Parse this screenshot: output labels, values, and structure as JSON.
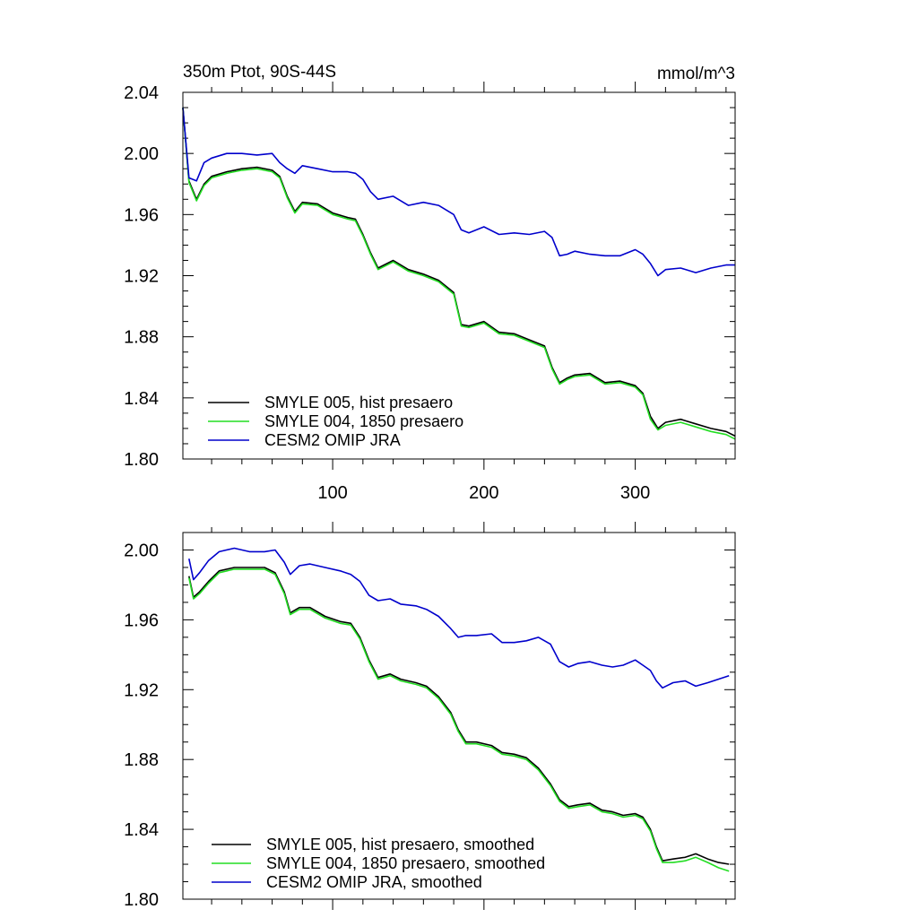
{
  "chart_data": [
    {
      "type": "line",
      "title": "350m Ptot, 90S-44S",
      "units": "mmol/m^3",
      "xlim": [
        1,
        366
      ],
      "ylim": [
        1.8,
        2.04
      ],
      "xticks": [
        100,
        200,
        300
      ],
      "xtick_labels": [
        "100",
        "200",
        "300"
      ],
      "yticks": [
        1.8,
        1.84,
        1.88,
        1.92,
        1.96,
        2.0,
        2.04
      ],
      "ytick_labels": [
        "1.80",
        "1.84",
        "1.88",
        "1.92",
        "1.96",
        "2.00",
        "2.04"
      ],
      "legend_position": "bottom-left",
      "series": [
        {
          "name": "SMYLE 005, hist presaero",
          "color": "#000000",
          "x": [
            1,
            5,
            10,
            15,
            20,
            30,
            40,
            50,
            60,
            65,
            70,
            75,
            80,
            90,
            100,
            110,
            115,
            120,
            125,
            130,
            140,
            150,
            160,
            170,
            180,
            185,
            190,
            200,
            210,
            220,
            230,
            240,
            245,
            250,
            255,
            260,
            270,
            280,
            290,
            300,
            305,
            310,
            315,
            320,
            330,
            340,
            350,
            360,
            366
          ],
          "values": [
            2.03,
            1.982,
            1.97,
            1.98,
            1.985,
            1.988,
            1.99,
            1.991,
            1.989,
            1.985,
            1.972,
            1.962,
            1.968,
            1.967,
            1.961,
            1.958,
            1.957,
            1.947,
            1.935,
            1.925,
            1.93,
            1.924,
            1.921,
            1.917,
            1.909,
            1.888,
            1.887,
            1.89,
            1.883,
            1.882,
            1.878,
            1.874,
            1.86,
            1.85,
            1.853,
            1.855,
            1.856,
            1.85,
            1.851,
            1.848,
            1.843,
            1.828,
            1.82,
            1.824,
            1.826,
            1.823,
            1.82,
            1.818,
            1.815
          ]
        },
        {
          "name": "SMYLE 004, 1850 presaero",
          "color": "#22dd22",
          "x": [
            1,
            5,
            10,
            15,
            20,
            30,
            40,
            50,
            60,
            65,
            70,
            75,
            80,
            90,
            100,
            110,
            115,
            120,
            125,
            130,
            140,
            150,
            160,
            170,
            180,
            185,
            190,
            200,
            210,
            220,
            230,
            240,
            245,
            250,
            255,
            260,
            270,
            280,
            290,
            300,
            305,
            310,
            315,
            320,
            330,
            340,
            350,
            360,
            366
          ],
          "values": [
            2.03,
            1.981,
            1.969,
            1.979,
            1.984,
            1.987,
            1.989,
            1.99,
            1.988,
            1.984,
            1.971,
            1.961,
            1.967,
            1.966,
            1.96,
            1.957,
            1.956,
            1.946,
            1.934,
            1.924,
            1.929,
            1.923,
            1.92,
            1.916,
            1.908,
            1.887,
            1.886,
            1.889,
            1.882,
            1.881,
            1.877,
            1.873,
            1.859,
            1.849,
            1.852,
            1.854,
            1.855,
            1.849,
            1.85,
            1.847,
            1.842,
            1.826,
            1.819,
            1.822,
            1.824,
            1.821,
            1.818,
            1.816,
            1.813
          ]
        },
        {
          "name": "CESM2 OMIP JRA",
          "color": "#0000cc",
          "x": [
            1,
            5,
            10,
            15,
            20,
            30,
            40,
            50,
            60,
            65,
            70,
            75,
            80,
            90,
            100,
            110,
            115,
            120,
            125,
            130,
            140,
            150,
            160,
            170,
            180,
            185,
            190,
            200,
            210,
            220,
            230,
            240,
            245,
            250,
            255,
            260,
            270,
            280,
            290,
            300,
            305,
            310,
            315,
            320,
            330,
            340,
            350,
            360,
            366
          ],
          "values": [
            2.03,
            1.984,
            1.982,
            1.994,
            1.997,
            2.0,
            2.0,
            1.999,
            2.0,
            1.994,
            1.99,
            1.987,
            1.992,
            1.99,
            1.988,
            1.988,
            1.987,
            1.983,
            1.975,
            1.97,
            1.972,
            1.966,
            1.968,
            1.966,
            1.96,
            1.95,
            1.948,
            1.952,
            1.947,
            1.948,
            1.947,
            1.949,
            1.945,
            1.933,
            1.934,
            1.936,
            1.934,
            1.933,
            1.933,
            1.937,
            1.934,
            1.928,
            1.92,
            1.924,
            1.925,
            1.922,
            1.925,
            1.927,
            1.927
          ]
        }
      ]
    },
    {
      "type": "line",
      "title": "",
      "xlim": [
        1,
        366
      ],
      "ylim": [
        1.8,
        2.01
      ],
      "xticks": [
        100,
        200,
        300
      ],
      "yticks": [
        1.8,
        1.84,
        1.88,
        1.92,
        1.96,
        2.0
      ],
      "ytick_labels": [
        "1.80",
        "1.84",
        "1.88",
        "1.92",
        "1.96",
        "2.00"
      ],
      "legend_position": "bottom-left",
      "series": [
        {
          "name": "SMYLE 005, hist presaero, smoothed",
          "color": "#000000",
          "x": [
            5,
            8,
            12,
            18,
            25,
            35,
            45,
            55,
            62,
            68,
            72,
            78,
            85,
            95,
            105,
            112,
            118,
            124,
            130,
            138,
            145,
            155,
            162,
            170,
            178,
            183,
            188,
            195,
            205,
            212,
            220,
            228,
            236,
            244,
            250,
            256,
            262,
            270,
            278,
            285,
            292,
            300,
            305,
            310,
            314,
            318,
            325,
            333,
            340,
            348,
            355,
            362
          ],
          "values": [
            1.985,
            1.973,
            1.976,
            1.982,
            1.988,
            1.99,
            1.99,
            1.99,
            1.987,
            1.976,
            1.964,
            1.967,
            1.967,
            1.962,
            1.959,
            1.958,
            1.95,
            1.937,
            1.927,
            1.929,
            1.926,
            1.924,
            1.922,
            1.916,
            1.907,
            1.897,
            1.89,
            1.89,
            1.888,
            1.884,
            1.883,
            1.881,
            1.875,
            1.866,
            1.857,
            1.853,
            1.854,
            1.855,
            1.851,
            1.85,
            1.848,
            1.849,
            1.847,
            1.84,
            1.83,
            1.822,
            1.823,
            1.824,
            1.826,
            1.823,
            1.821,
            1.82
          ]
        },
        {
          "name": "SMYLE 004, 1850 presaero, smoothed",
          "color": "#22dd22",
          "x": [
            5,
            8,
            12,
            18,
            25,
            35,
            45,
            55,
            62,
            68,
            72,
            78,
            85,
            95,
            105,
            112,
            118,
            124,
            130,
            138,
            145,
            155,
            162,
            170,
            178,
            183,
            188,
            195,
            205,
            212,
            220,
            228,
            236,
            244,
            250,
            256,
            262,
            270,
            278,
            285,
            292,
            300,
            305,
            310,
            314,
            318,
            325,
            333,
            340,
            348,
            355,
            362
          ],
          "values": [
            1.984,
            1.972,
            1.975,
            1.981,
            1.987,
            1.989,
            1.989,
            1.989,
            1.986,
            1.975,
            1.963,
            1.966,
            1.966,
            1.961,
            1.958,
            1.957,
            1.949,
            1.936,
            1.926,
            1.928,
            1.925,
            1.923,
            1.921,
            1.915,
            1.906,
            1.896,
            1.889,
            1.889,
            1.887,
            1.883,
            1.882,
            1.88,
            1.874,
            1.865,
            1.856,
            1.852,
            1.853,
            1.854,
            1.85,
            1.849,
            1.847,
            1.848,
            1.846,
            1.839,
            1.829,
            1.821,
            1.821,
            1.822,
            1.824,
            1.821,
            1.818,
            1.816
          ]
        },
        {
          "name": "CESM2 OMIP JRA, smoothed",
          "color": "#0000cc",
          "x": [
            5,
            8,
            12,
            18,
            25,
            35,
            45,
            55,
            62,
            68,
            72,
            78,
            85,
            95,
            105,
            112,
            118,
            124,
            130,
            138,
            145,
            155,
            162,
            170,
            178,
            183,
            188,
            195,
            205,
            212,
            220,
            228,
            236,
            244,
            250,
            256,
            262,
            270,
            278,
            285,
            292,
            300,
            305,
            310,
            314,
            318,
            325,
            333,
            340,
            348,
            355,
            362
          ],
          "values": [
            1.995,
            1.983,
            1.987,
            1.994,
            1.999,
            2.001,
            1.999,
            1.999,
            2.0,
            1.993,
            1.986,
            1.991,
            1.992,
            1.99,
            1.988,
            1.986,
            1.982,
            1.974,
            1.971,
            1.972,
            1.969,
            1.968,
            1.966,
            1.962,
            1.955,
            1.95,
            1.951,
            1.951,
            1.952,
            1.947,
            1.947,
            1.948,
            1.95,
            1.946,
            1.936,
            1.933,
            1.935,
            1.936,
            1.934,
            1.933,
            1.934,
            1.937,
            1.934,
            1.931,
            1.925,
            1.921,
            1.924,
            1.925,
            1.922,
            1.924,
            1.926,
            1.928
          ]
        }
      ]
    }
  ]
}
